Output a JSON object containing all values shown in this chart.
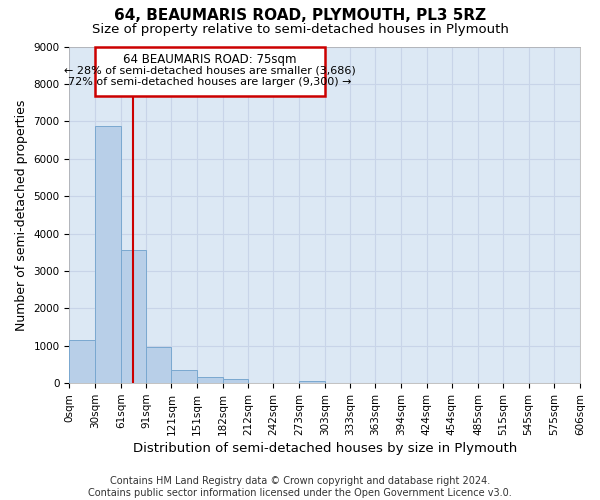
{
  "title": "64, BEAUMARIS ROAD, PLYMOUTH, PL3 5RZ",
  "subtitle": "Size of property relative to semi-detached houses in Plymouth",
  "xlabel": "Distribution of semi-detached houses by size in Plymouth",
  "ylabel": "Number of semi-detached properties",
  "footer_line1": "Contains HM Land Registry data © Crown copyright and database right 2024.",
  "footer_line2": "Contains public sector information licensed under the Open Government Licence v3.0.",
  "bin_edges": [
    0,
    30,
    61,
    91,
    121,
    151,
    182,
    212,
    242,
    273,
    303,
    333,
    363,
    394,
    424,
    454,
    485,
    515,
    545,
    575,
    606
  ],
  "bar_heights": [
    1150,
    6880,
    3560,
    960,
    340,
    155,
    100,
    0,
    0,
    70,
    0,
    0,
    0,
    0,
    0,
    0,
    0,
    0,
    0,
    0
  ],
  "bar_color": "#b8cfe8",
  "bar_edge_color": "#7aa8d0",
  "property_size": 75,
  "property_label": "64 BEAUMARIS ROAD: 75sqm",
  "annotation_line1": "← 28% of semi-detached houses are smaller (3,686)",
  "annotation_line2": "72% of semi-detached houses are larger (9,300) →",
  "annotation_box_color": "#cc0000",
  "vline_color": "#cc0000",
  "ylim": [
    0,
    9000
  ],
  "yticks": [
    0,
    1000,
    2000,
    3000,
    4000,
    5000,
    6000,
    7000,
    8000,
    9000
  ],
  "grid_color": "#c8d4e8",
  "bg_color": "#dce8f4",
  "title_fontsize": 11,
  "subtitle_fontsize": 9.5,
  "axis_label_fontsize": 9,
  "tick_fontsize": 7.5,
  "footer_fontsize": 7,
  "annot_fontsize": 8.5
}
